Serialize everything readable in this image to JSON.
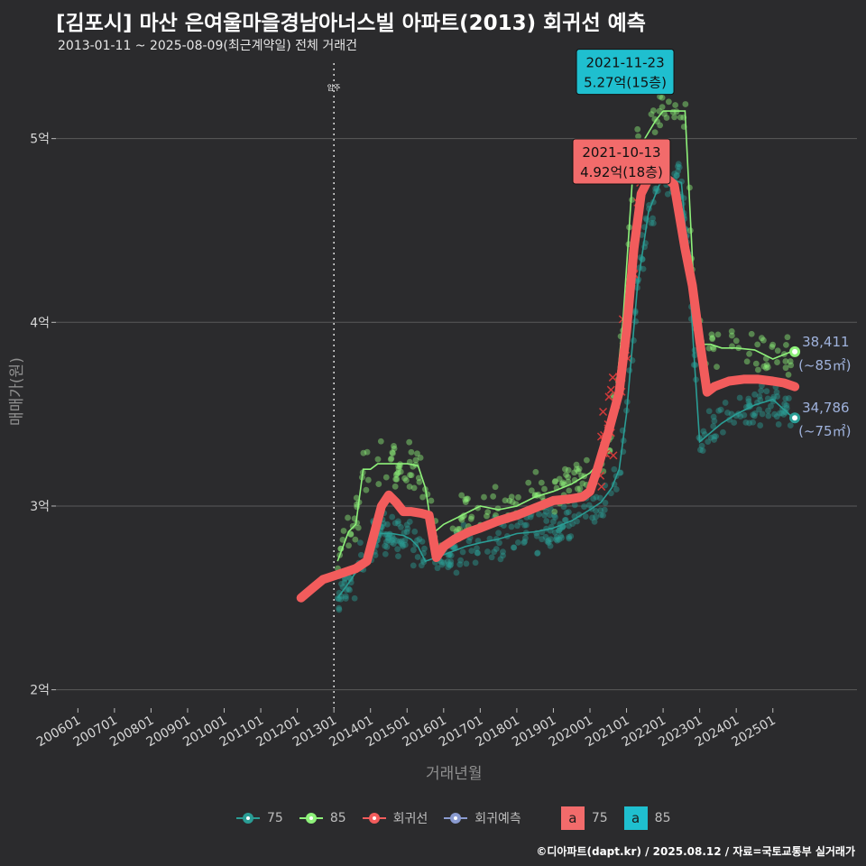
{
  "header": {
    "title": "[김포시] 마산 은여울마을경남아너스빌 아파트(2013) 회귀선 예측",
    "subtitle": "2013-01-11 ~ 2025-08-09(최근계약일) 전체 거래건"
  },
  "axes": {
    "ylabel": "매매가(원)",
    "xlabel": "거래년월"
  },
  "credit": "©디아파트(dapt.kr) / 2025.08.12 / 자료=국토교통부 실거래가",
  "legend": {
    "items": [
      {
        "label": "75",
        "color": "#2a9d95"
      },
      {
        "label": "85",
        "color": "#8ef17a"
      },
      {
        "label": "회귀선",
        "color": "#f25c5c"
      },
      {
        "label": "회귀예측",
        "color": "#8a9bd0"
      }
    ],
    "fill_items": [
      {
        "key": "a",
        "label": "75",
        "color": "#f26b6b"
      },
      {
        "key": "a",
        "label": "85",
        "color": "#1fbfcf"
      }
    ]
  },
  "colors": {
    "background": "#2b2b2d",
    "grid": "#5a5a5a",
    "s75": "#2a9d95",
    "s85": "#8ef17a",
    "regression": "#f25c5c",
    "annot75": "#f26b6b",
    "annot85": "#1fbfcf",
    "endlabel": "#9fb2dc"
  },
  "chart_data": {
    "type": "scatter",
    "title": "[김포시] 마산 은여울마을경남아너스빌 아파트(2013) 회귀선 예측",
    "xlabel": "거래년월",
    "ylabel": "매매가(원)",
    "x_ticks": [
      "200601",
      "200701",
      "200801",
      "200901",
      "201001",
      "201101",
      "201201",
      "201301",
      "201401",
      "201501",
      "201601",
      "201701",
      "201801",
      "201901",
      "202001",
      "202101",
      "202201",
      "202301",
      "202401",
      "202501"
    ],
    "x_range": [
      2005.4,
      2027.3
    ],
    "y_ticks": [
      {
        "value": 2.0,
        "label": "2억"
      },
      {
        "value": 3.0,
        "label": "3억"
      },
      {
        "value": 4.0,
        "label": "4억"
      },
      {
        "value": 5.0,
        "label": "5억"
      }
    ],
    "y_range": [
      1.9,
      5.45
    ],
    "y_unit": "억",
    "move_in_marker": {
      "x": 2013.0,
      "label": "입주"
    },
    "series": [
      {
        "name": "75",
        "type": "line",
        "x": [
          2013.1,
          2013.4,
          2013.8,
          2014.1,
          2014.3,
          2014.6,
          2014.9,
          2015.1,
          2015.3,
          2015.5,
          2015.8,
          2016.2,
          2016.6,
          2017.0,
          2017.5,
          2018.0,
          2018.5,
          2019.0,
          2019.5,
          2020.0,
          2020.3,
          2020.6,
          2020.8,
          2021.0,
          2021.3,
          2021.6,
          2021.9,
          2022.2,
          2022.5,
          2022.7,
          2022.85,
          2023.0,
          2023.3,
          2023.6,
          2024.0,
          2024.5,
          2025.0,
          2025.5
        ],
        "values": [
          2.5,
          2.58,
          2.7,
          2.85,
          2.85,
          2.85,
          2.84,
          2.82,
          2.78,
          2.7,
          2.72,
          2.75,
          2.78,
          2.8,
          2.82,
          2.85,
          2.86,
          2.88,
          2.92,
          2.98,
          3.02,
          3.1,
          3.2,
          3.5,
          4.2,
          4.6,
          4.75,
          4.78,
          4.76,
          4.3,
          3.8,
          3.35,
          3.4,
          3.45,
          3.5,
          3.55,
          3.58,
          3.49
        ]
      },
      {
        "name": "85",
        "type": "line",
        "x": [
          2013.1,
          2013.4,
          2013.6,
          2013.8,
          2014.0,
          2014.2,
          2014.5,
          2014.8,
          2015.0,
          2015.3,
          2015.5,
          2015.7,
          2016.0,
          2016.5,
          2017.0,
          2017.5,
          2018.0,
          2018.5,
          2019.0,
          2019.5,
          2020.0,
          2020.3,
          2020.6,
          2020.9,
          2021.2,
          2021.5,
          2021.8,
          2022.0,
          2022.3,
          2022.6,
          2022.9,
          2023.1,
          2023.3,
          2023.6,
          2024.0,
          2024.5,
          2025.0,
          2025.5
        ],
        "values": [
          2.7,
          2.86,
          2.9,
          3.2,
          3.2,
          3.23,
          3.23,
          3.23,
          3.23,
          3.22,
          3.1,
          2.85,
          2.9,
          2.95,
          3.0,
          2.98,
          3.0,
          3.05,
          3.08,
          3.12,
          3.18,
          3.25,
          3.4,
          4.0,
          4.9,
          5.0,
          5.1,
          5.15,
          5.15,
          5.15,
          3.95,
          3.88,
          3.88,
          3.86,
          3.86,
          3.85,
          3.8,
          3.84
        ]
      },
      {
        "name": "회귀선",
        "type": "line",
        "x": [
          2012.1,
          2012.4,
          2012.7,
          2013.0,
          2013.3,
          2013.6,
          2013.9,
          2014.1,
          2014.3,
          2014.5,
          2014.7,
          2014.9,
          2015.1,
          2015.4,
          2015.6,
          2015.8,
          2016.0,
          2016.3,
          2016.7,
          2017.0,
          2017.5,
          2018.0,
          2018.5,
          2019.0,
          2019.5,
          2019.8,
          2020.0,
          2020.2,
          2020.5,
          2020.8,
          2021.0,
          2021.2,
          2021.4,
          2021.6,
          2021.8,
          2022.0,
          2022.3,
          2022.6,
          2022.8,
          2023.0,
          2023.2,
          2023.4,
          2023.8,
          2024.2,
          2024.6,
          2025.0,
          2025.3,
          2025.6
        ],
        "values": [
          2.5,
          2.55,
          2.6,
          2.62,
          2.64,
          2.66,
          2.7,
          2.85,
          3.0,
          3.06,
          3.02,
          2.97,
          2.97,
          2.96,
          2.95,
          2.72,
          2.78,
          2.82,
          2.86,
          2.88,
          2.92,
          2.95,
          2.99,
          3.03,
          3.04,
          3.05,
          3.08,
          3.2,
          3.4,
          3.62,
          3.95,
          4.4,
          4.7,
          4.78,
          4.8,
          4.8,
          4.75,
          4.4,
          4.2,
          3.9,
          3.62,
          3.65,
          3.68,
          3.69,
          3.69,
          3.68,
          3.67,
          3.65
        ]
      }
    ],
    "end_labels": [
      {
        "series": "85",
        "text": "38,411",
        "sub": "(~85㎡)",
        "x": 2025.6,
        "y": 3.84
      },
      {
        "series": "75",
        "text": "34,786",
        "sub": "(~75㎡)",
        "x": 2025.6,
        "y": 3.48
      }
    ],
    "annotations": [
      {
        "series": "85",
        "date": "2021-11-23",
        "value": "5.27억(15층)",
        "x": 2021.9,
        "y": 5.27
      },
      {
        "series": "75",
        "date": "2021-10-13",
        "value": "4.92억(18층)",
        "x": 2021.8,
        "y": 4.92
      }
    ]
  }
}
